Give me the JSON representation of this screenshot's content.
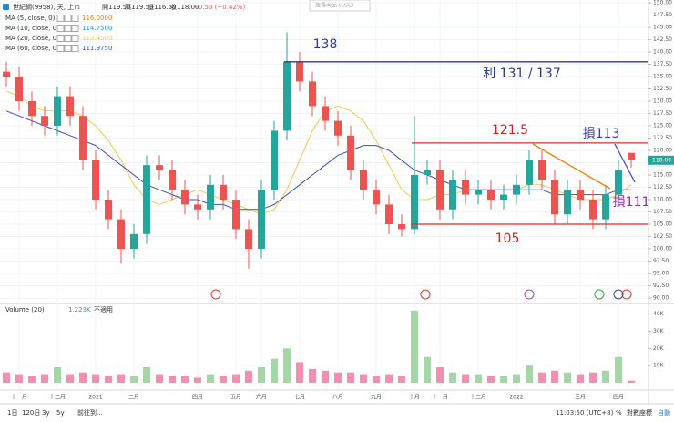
{
  "header": {
    "symbol": "世紀鋼(9958), 天, 上市",
    "ohlc": [
      "開119.50",
      "高119.50",
      "低116.50",
      "收118.00"
    ],
    "change": "−0.50 (−0.42%)",
    "search": "搜尋商品 (ESC)"
  },
  "chart_data": {
    "type": "candlestick",
    "categories": [
      null,
      "十一月",
      null,
      null,
      "十二月",
      null,
      null,
      "2021",
      null,
      null,
      "二月",
      null,
      null,
      null,
      null,
      "四月",
      null,
      null,
      "五月",
      null,
      "六月",
      null,
      null,
      "七月",
      null,
      null,
      "八月",
      null,
      null,
      "九月",
      null,
      null,
      "十月",
      null,
      "十一月",
      null,
      null,
      "十二月",
      null,
      null,
      "2022",
      null,
      null,
      null,
      null,
      "三月",
      null,
      null,
      "四月",
      null
    ],
    "open": [
      136,
      135,
      130,
      127,
      125,
      131,
      127,
      118,
      110,
      106,
      100,
      103,
      117,
      116,
      112,
      109,
      108,
      113,
      110,
      104,
      100,
      112,
      124,
      138,
      134,
      129,
      126,
      123,
      116,
      112,
      109,
      105,
      104,
      115,
      116,
      108,
      114,
      111,
      112,
      110,
      111,
      113,
      118,
      114,
      107,
      112,
      110,
      106,
      111,
      119.5
    ],
    "high": [
      138,
      137,
      132,
      129,
      133,
      133,
      129,
      120,
      112,
      108,
      105,
      119,
      119,
      118,
      114,
      111,
      115,
      115,
      112,
      106,
      114,
      126,
      144,
      140,
      136,
      131,
      128,
      125,
      118,
      114,
      111,
      107,
      127,
      118,
      118,
      116,
      116,
      114,
      114,
      113,
      115,
      120,
      120,
      116,
      114,
      114,
      112,
      113,
      118,
      119.5
    ],
    "low": [
      133,
      128,
      125,
      123,
      123,
      125,
      116,
      108,
      104,
      97,
      98,
      101,
      114,
      110,
      107,
      106,
      106,
      108,
      102,
      96,
      98,
      110,
      122,
      132,
      127,
      124,
      121,
      114,
      110,
      107,
      103,
      102.5,
      103,
      113,
      106,
      106,
      109,
      109,
      108,
      108,
      109,
      111,
      112,
      105,
      105,
      108,
      104,
      104,
      109,
      116.5
    ],
    "close": [
      135,
      130,
      127,
      125,
      131,
      127,
      118,
      110,
      106,
      100,
      103,
      117,
      116,
      112,
      109,
      108,
      113,
      110,
      104,
      100,
      112,
      124,
      138,
      134,
      129,
      126,
      123,
      116,
      112,
      109,
      105,
      104,
      115,
      116,
      108,
      114,
      111,
      112,
      110,
      111,
      113,
      118,
      114,
      107,
      112,
      110,
      106,
      111,
      116,
      118
    ],
    "up_color": "#26a69a",
    "down_color": "#ef5350",
    "ylim": [
      90,
      150
    ],
    "yticks": [
      {
        "value": 150,
        "label": "150.00"
      },
      {
        "value": 147.5,
        "label": "147.50"
      },
      {
        "value": 145,
        "label": "145.00"
      },
      {
        "value": 142.5,
        "label": "142.50"
      },
      {
        "value": 140,
        "label": "140.00"
      },
      {
        "value": 137.5,
        "label": "137.50"
      },
      {
        "value": 135,
        "label": "135.00"
      },
      {
        "value": 132.5,
        "label": "132.50"
      },
      {
        "value": 130,
        "label": "130.00"
      },
      {
        "value": 127.5,
        "label": "127.50"
      },
      {
        "value": 125,
        "label": "125.00"
      },
      {
        "value": 122.5,
        "label": "122.50"
      },
      {
        "value": 120,
        "label": "120.00"
      },
      {
        "value": 117.5,
        "label": "117.50"
      },
      {
        "value": 115,
        "label": "115.00"
      },
      {
        "value": 112.5,
        "label": "112.50"
      },
      {
        "value": 110,
        "label": "110.00"
      },
      {
        "value": 107.5,
        "label": "107.50"
      },
      {
        "value": 105,
        "label": "105.00"
      },
      {
        "value": 102.5,
        "label": "102.50"
      },
      {
        "value": 100,
        "label": "100.00"
      },
      {
        "value": 97.5,
        "label": "97.50"
      },
      {
        "value": 95,
        "label": "95.00"
      },
      {
        "value": 92.5,
        "label": "92.50"
      },
      {
        "value": 90,
        "label": "90.00"
      }
    ],
    "grid": true,
    "series": [
      {
        "name": "MA (5, close, 0)",
        "value_label": "116.0000",
        "color": "#f57c00"
      },
      {
        "name": "MA (10, close, 0)",
        "value_label": "114.7500",
        "color": "#2196f3"
      },
      {
        "name": "MA (20, close, 0)",
        "value_label": "113.4500",
        "color": "#f2c94c",
        "values": [
          132,
          131,
          129,
          128,
          128,
          128,
          127,
          125,
          122,
          118,
          113,
          110,
          109,
          110,
          111,
          112,
          111,
          110,
          109,
          108,
          107,
          108,
          112,
          118,
          124,
          128,
          129,
          128,
          126,
          122,
          117,
          112,
          110,
          110,
          111,
          111,
          112,
          112,
          112,
          112,
          112,
          113,
          113,
          112,
          111,
          110,
          110,
          110,
          111,
          113
        ]
      },
      {
        "name": "MA (60, close, 0)",
        "value_label": "111.9750",
        "color": "#3f51b5",
        "values": [
          128,
          127,
          126,
          125,
          124,
          123,
          122,
          121,
          119,
          117,
          115,
          113,
          112,
          111,
          110,
          110,
          109,
          109,
          108,
          108,
          108,
          109,
          111,
          113,
          115,
          117,
          119,
          120,
          121,
          121,
          120,
          118,
          116,
          115,
          114,
          113,
          112,
          112,
          112,
          112,
          112,
          112,
          112,
          111,
          111,
          111,
          111,
          111,
          112,
          112
        ]
      }
    ],
    "last_price": {
      "value": 118,
      "label": "118.00",
      "color": "#26a69a"
    },
    "hlines": [
      {
        "value": 138,
        "color": "#2b3a8f"
      },
      {
        "value": 121.5,
        "color": "#d32f2f"
      },
      {
        "value": 105,
        "color": "#d32f2f"
      }
    ],
    "annotations": [
      {
        "text": "138",
        "color": "#2b3a8f"
      },
      {
        "text": "利 131 / 137",
        "color": "#2b3a8f"
      },
      {
        "text": "121.5",
        "color": "#c62828"
      },
      {
        "text": "105",
        "color": "#c62828"
      },
      {
        "text": "損113",
        "color": "#3f3fbf"
      },
      {
        "text": "損111",
        "color": "#9c27b0"
      }
    ],
    "volume": {
      "title": "Volume (20)",
      "value_label": "1.223K",
      "note": "不適用",
      "up_color": "#a5d6a7",
      "down_color": "#f48fb1",
      "values": [
        6000,
        5000,
        4000,
        5000,
        9000,
        5000,
        6000,
        5000,
        4000,
        5000,
        4000,
        9000,
        5000,
        4000,
        4000,
        3000,
        5000,
        4000,
        5000,
        7000,
        9000,
        14000,
        20000,
        12000,
        8000,
        7000,
        6000,
        6000,
        5000,
        4000,
        5000,
        4000,
        42000,
        15000,
        9000,
        6000,
        5000,
        5000,
        4000,
        4000,
        5000,
        10000,
        6000,
        7000,
        6000,
        5000,
        6000,
        7000,
        15000,
        1223
      ],
      "ylim": [
        0,
        44000
      ],
      "yticks": [
        {
          "value": 10000,
          "label": "10K"
        },
        {
          "value": 20000,
          "label": "20K"
        },
        {
          "value": 30000,
          "label": "30K"
        },
        {
          "value": 40000,
          "label": "40K"
        }
      ]
    }
  },
  "footer": {
    "ranges": [
      "1日",
      "120日",
      "3y",
      "5y"
    ],
    "goto": "前往到...",
    "clock": "11:03:50 (UTC+8)",
    "percent": "%",
    "log": "對數座標",
    "auto": "自動"
  }
}
